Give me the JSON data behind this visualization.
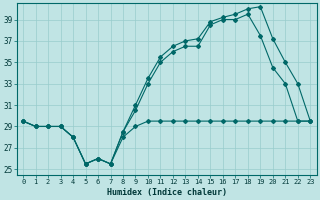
{
  "xlabel": "Humidex (Indice chaleur)",
  "bg_color": "#c0e4e4",
  "grid_color": "#98cccc",
  "line_color": "#006868",
  "xlim": [
    -0.5,
    23.5
  ],
  "ylim": [
    24.5,
    40.5
  ],
  "yticks": [
    25,
    27,
    29,
    31,
    33,
    35,
    37,
    39
  ],
  "xticks": [
    0,
    1,
    2,
    3,
    4,
    5,
    6,
    7,
    8,
    9,
    10,
    11,
    12,
    13,
    14,
    15,
    16,
    17,
    18,
    19,
    20,
    21,
    22,
    23
  ],
  "series1_x": [
    0,
    1,
    2,
    3,
    4,
    5,
    6,
    7,
    8,
    9,
    10,
    11,
    12,
    13,
    14,
    15,
    16,
    17,
    18,
    19,
    20,
    21,
    22,
    23
  ],
  "series1_y": [
    29.5,
    29.0,
    29.0,
    29.0,
    28.0,
    25.5,
    26.0,
    25.5,
    28.0,
    29.0,
    29.5,
    29.5,
    29.5,
    29.5,
    29.5,
    29.5,
    29.5,
    29.5,
    29.5,
    29.5,
    29.5,
    29.5,
    29.5,
    29.5
  ],
  "series2_x": [
    0,
    1,
    2,
    3,
    4,
    5,
    6,
    7,
    8,
    9,
    10,
    11,
    12,
    13,
    14,
    15,
    16,
    17,
    18,
    19,
    20,
    21,
    22,
    23
  ],
  "series2_y": [
    29.5,
    29.0,
    29.0,
    29.0,
    28.0,
    25.5,
    26.0,
    25.5,
    28.5,
    30.5,
    33.0,
    35.0,
    36.0,
    36.5,
    36.5,
    38.5,
    39.0,
    39.0,
    39.5,
    37.5,
    34.5,
    33.0,
    29.5,
    29.5
  ],
  "series3_x": [
    0,
    1,
    2,
    3,
    4,
    5,
    6,
    7,
    8,
    9,
    10,
    11,
    12,
    13,
    14,
    15,
    16,
    17,
    18,
    19,
    20,
    21,
    22,
    23
  ],
  "series3_y": [
    29.5,
    29.0,
    29.0,
    29.0,
    28.0,
    25.5,
    26.0,
    25.5,
    28.5,
    31.0,
    33.5,
    35.5,
    36.5,
    37.0,
    37.2,
    38.8,
    39.2,
    39.5,
    40.0,
    40.2,
    37.2,
    35.0,
    33.0,
    29.5
  ]
}
